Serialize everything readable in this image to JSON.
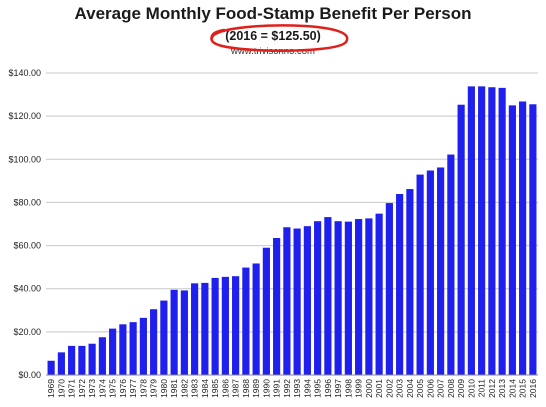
{
  "chart_data": {
    "type": "bar",
    "title": "Average Monthly Food-Stamp Benefit Per Person",
    "subtitle": "(2016 = $125.50)",
    "source": "www.trivisonno.com",
    "xlabel": "",
    "ylabel": "",
    "ylim": [
      0,
      140
    ],
    "y_ticks": [
      "$0.00",
      "$20.00",
      "$40.00",
      "$60.00",
      "$80.00",
      "$100.00",
      "$120.00",
      "$140.00"
    ],
    "grid": true,
    "bar_color": "#1f1fee",
    "annotation_color": "#e0201b",
    "categories": [
      "1969",
      "1970",
      "1971",
      "1972",
      "1973",
      "1974",
      "1975",
      "1976",
      "1977",
      "1978",
      "1979",
      "1980",
      "1981",
      "1982",
      "1983",
      "1984",
      "1985",
      "1986",
      "1987",
      "1988",
      "1989",
      "1990",
      "1991",
      "1992",
      "1993",
      "1994",
      "1995",
      "1996",
      "1997",
      "1998",
      "1999",
      "2000",
      "2001",
      "2002",
      "2003",
      "2004",
      "2005",
      "2006",
      "2007",
      "2008",
      "2009",
      "2010",
      "2011",
      "2012",
      "2013",
      "2014",
      "2015",
      "2016"
    ],
    "values": [
      6.6,
      10.5,
      13.5,
      13.5,
      14.5,
      17.5,
      21.5,
      23.5,
      24.5,
      26.5,
      30.5,
      34.5,
      39.5,
      39.2,
      42.5,
      42.7,
      45.0,
      45.5,
      45.8,
      49.8,
      51.7,
      59.0,
      63.5,
      68.5,
      67.9,
      69.0,
      71.3,
      73.2,
      71.3,
      71.1,
      72.3,
      72.6,
      74.8,
      79.7,
      83.9,
      86.2,
      92.9,
      94.8,
      96.2,
      102.2,
      125.3,
      133.8,
      133.8,
      133.4,
      133.1,
      125.0,
      126.8,
      125.5
    ]
  }
}
